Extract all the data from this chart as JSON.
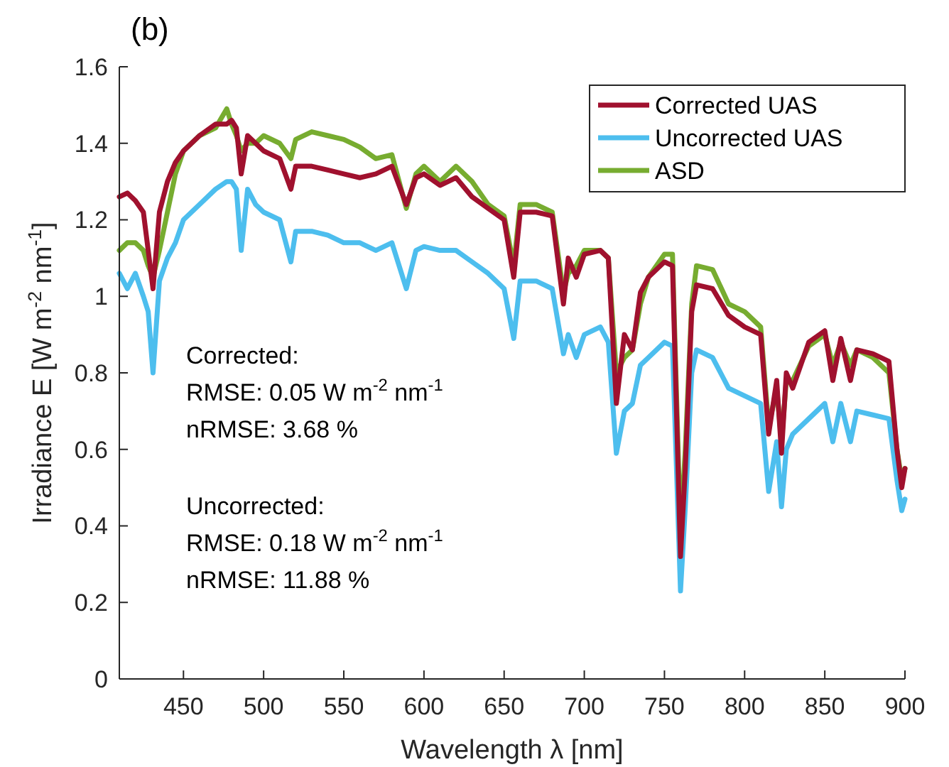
{
  "chart_data": {
    "type": "line",
    "title": "(b)",
    "xlabel": "Wavelength λ [nm]",
    "ylabel": "Irradiance E [W m$^{-2}$ nm$^{-1}$]",
    "x": [
      410,
      415,
      420,
      425,
      428,
      431,
      435,
      440,
      445,
      450,
      460,
      470,
      477,
      480,
      483,
      486,
      490,
      495,
      500,
      510,
      517,
      520,
      530,
      540,
      550,
      560,
      570,
      580,
      589,
      595,
      600,
      610,
      620,
      630,
      640,
      650,
      656,
      660,
      670,
      680,
      687,
      690,
      695,
      700,
      710,
      715,
      720,
      725,
      730,
      735,
      740,
      750,
      755,
      760,
      763,
      767,
      770,
      780,
      790,
      800,
      810,
      815,
      820,
      823,
      826,
      830,
      840,
      850,
      855,
      860,
      866,
      870,
      880,
      890,
      895,
      898,
      900
    ],
    "series": [
      {
        "name": "Corrected UAS",
        "color": "#a0112e",
        "values": [
          1.26,
          1.27,
          1.25,
          1.22,
          1.12,
          1.02,
          1.22,
          1.3,
          1.35,
          1.38,
          1.42,
          1.45,
          1.45,
          1.46,
          1.44,
          1.32,
          1.42,
          1.4,
          1.38,
          1.36,
          1.28,
          1.34,
          1.34,
          1.33,
          1.32,
          1.31,
          1.32,
          1.34,
          1.24,
          1.31,
          1.32,
          1.29,
          1.31,
          1.26,
          1.23,
          1.2,
          1.05,
          1.22,
          1.22,
          1.21,
          0.98,
          1.1,
          1.05,
          1.11,
          1.12,
          1.1,
          0.72,
          0.9,
          0.86,
          1.01,
          1.05,
          1.09,
          1.08,
          0.32,
          0.55,
          0.96,
          1.03,
          1.02,
          0.95,
          0.92,
          0.9,
          0.64,
          0.78,
          0.59,
          0.8,
          0.76,
          0.88,
          0.91,
          0.78,
          0.89,
          0.78,
          0.86,
          0.85,
          0.83,
          0.6,
          0.5,
          0.55
        ]
      },
      {
        "name": "Uncorrected UAS",
        "color": "#4dbeee",
        "values": [
          1.06,
          1.02,
          1.06,
          1.0,
          0.96,
          0.8,
          1.04,
          1.1,
          1.14,
          1.2,
          1.24,
          1.28,
          1.3,
          1.3,
          1.28,
          1.12,
          1.28,
          1.24,
          1.22,
          1.2,
          1.09,
          1.17,
          1.17,
          1.16,
          1.14,
          1.14,
          1.12,
          1.14,
          1.02,
          1.12,
          1.13,
          1.12,
          1.12,
          1.09,
          1.06,
          1.02,
          0.89,
          1.04,
          1.04,
          1.02,
          0.85,
          0.9,
          0.84,
          0.9,
          0.92,
          0.88,
          0.59,
          0.7,
          0.72,
          0.82,
          0.84,
          0.88,
          0.87,
          0.23,
          0.45,
          0.8,
          0.86,
          0.84,
          0.76,
          0.74,
          0.72,
          0.49,
          0.62,
          0.45,
          0.6,
          0.64,
          0.68,
          0.72,
          0.62,
          0.72,
          0.62,
          0.7,
          0.69,
          0.68,
          0.52,
          0.44,
          0.47
        ]
      },
      {
        "name": "ASD",
        "color": "#77ac30",
        "values": [
          1.12,
          1.14,
          1.14,
          1.12,
          1.08,
          1.05,
          1.12,
          1.22,
          1.32,
          1.38,
          1.42,
          1.44,
          1.49,
          1.45,
          1.42,
          1.38,
          1.4,
          1.4,
          1.42,
          1.4,
          1.36,
          1.41,
          1.43,
          1.42,
          1.41,
          1.39,
          1.36,
          1.37,
          1.23,
          1.32,
          1.34,
          1.3,
          1.34,
          1.3,
          1.24,
          1.21,
          1.08,
          1.24,
          1.24,
          1.22,
          1.01,
          1.06,
          1.08,
          1.12,
          1.12,
          1.1,
          0.8,
          0.84,
          0.86,
          0.98,
          1.05,
          1.11,
          1.11,
          0.38,
          0.6,
          0.98,
          1.08,
          1.07,
          0.98,
          0.96,
          0.92,
          0.66,
          0.76,
          0.62,
          0.78,
          0.78,
          0.87,
          0.9,
          0.82,
          0.88,
          0.82,
          0.86,
          0.84,
          0.8,
          0.6,
          0.52,
          0.55
        ]
      }
    ],
    "xlim": [
      410,
      900
    ],
    "xticks": [
      450,
      500,
      550,
      600,
      650,
      700,
      750,
      800,
      850,
      900
    ],
    "ylim": [
      0,
      1.6
    ],
    "yticks": [
      0,
      0.2,
      0.4,
      0.6,
      0.8,
      1,
      1.2,
      1.4,
      1.6
    ],
    "annotations": [
      "Corrected:",
      "RMSE: 0.05 W m$^{-2}$ nm$^{-1}$",
      "nRMSE: 3.68 %",
      "Uncorrected:",
      "RMSE: 0.18 W m$^{-2}$ nm$^{-1}$",
      "nRMSE: 11.88 %"
    ],
    "legend": "top right",
    "grid": false,
    "marker": "none",
    "line_style": "solid"
  }
}
